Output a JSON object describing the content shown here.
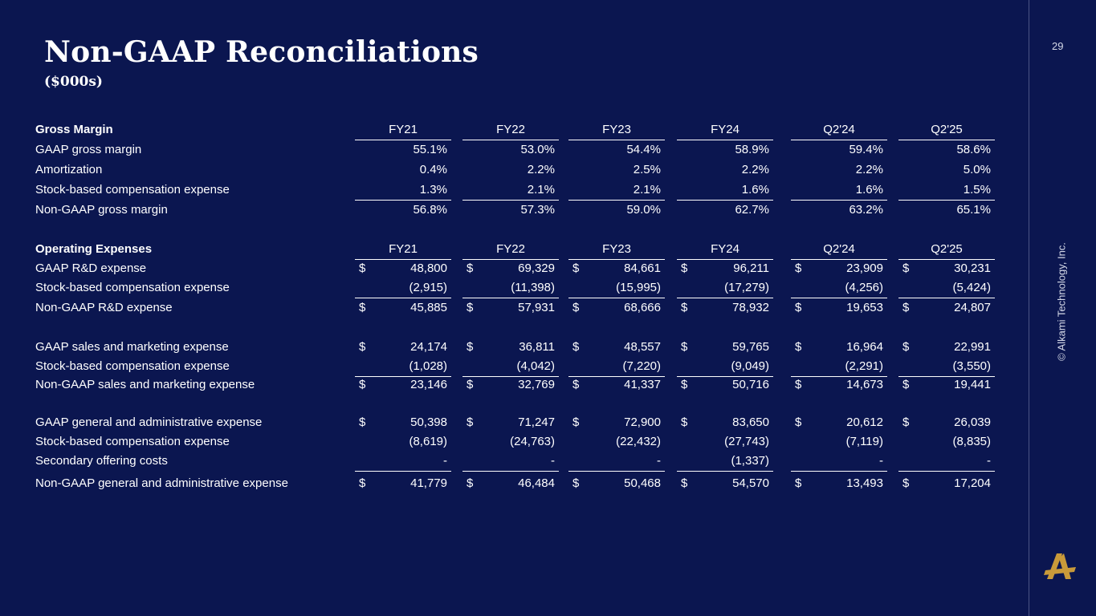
{
  "slide": {
    "title": "Non-GAAP Reconciliations",
    "subtitle": "($000s)",
    "page_number": "29",
    "copyright": "© Alkami Technology, Inc."
  },
  "table": {
    "rows": [
      {
        "label": "Gross Margin",
        "type": "head",
        "cells": [
          "FY21",
          "FY22",
          "FY23",
          "FY24",
          "Q2'24",
          "Q2'25"
        ]
      },
      {
        "label": "GAAP gross margin",
        "cells": [
          "55.1%",
          "53.0%",
          "54.4%",
          "58.9%",
          "59.4%",
          "58.6%"
        ]
      },
      {
        "label": "Amortization",
        "cells": [
          "0.4%",
          "2.2%",
          "2.5%",
          "2.2%",
          "2.2%",
          "5.0%"
        ]
      },
      {
        "label": "Stock-based compensation expense",
        "cells": [
          "1.3%",
          "2.1%",
          "2.1%",
          "1.6%",
          "1.6%",
          "1.5%"
        ]
      },
      {
        "label": "Non-GAAP gross margin",
        "cells": [
          "56.8%",
          "57.3%",
          "59.0%",
          "62.7%",
          "63.2%",
          "65.1%"
        ]
      },
      {
        "label": "Operating Expenses",
        "type": "head",
        "cells": [
          "FY21",
          "FY22",
          "FY23",
          "FY24",
          "Q2'24",
          "Q2'25"
        ]
      },
      {
        "label": "GAAP R&D expense",
        "dollar": true,
        "cells": [
          "48,800",
          "69,329",
          "84,661",
          "96,211",
          "23,909",
          "30,231"
        ]
      },
      {
        "label": "Stock-based compensation expense",
        "cells": [
          "(2,915)",
          "(11,398)",
          "(15,995)",
          "(17,279)",
          "(4,256)",
          "(5,424)"
        ]
      },
      {
        "label": "Non-GAAP R&D expense",
        "dollar": true,
        "cells": [
          "45,885",
          "57,931",
          "68,666",
          "78,932",
          "19,653",
          "24,807"
        ]
      },
      {
        "label": "GAAP sales and marketing expense",
        "dollar": true,
        "cells": [
          "24,174",
          "36,811",
          "48,557",
          "59,765",
          "16,964",
          "22,991"
        ]
      },
      {
        "label": "Stock-based compensation expense",
        "cells": [
          "(1,028)",
          "(4,042)",
          "(7,220)",
          "(9,049)",
          "(2,291)",
          "(3,550)"
        ]
      },
      {
        "label": "Non-GAAP sales and marketing expense",
        "dollar": true,
        "cells": [
          "23,146",
          "32,769",
          "41,337",
          "50,716",
          "14,673",
          "19,441"
        ]
      },
      {
        "label": "GAAP general and administrative expense",
        "dollar": true,
        "cells": [
          "50,398",
          "71,247",
          "72,900",
          "83,650",
          "20,612",
          "26,039"
        ]
      },
      {
        "label": "Stock-based compensation expense",
        "cells": [
          "(8,619)",
          "(24,763)",
          "(22,432)",
          "(27,743)",
          "(7,119)",
          "(8,835)"
        ]
      },
      {
        "label": "Secondary offering costs",
        "cells": [
          "-",
          "-",
          "-",
          "(1,337)",
          "-",
          "-"
        ]
      },
      {
        "label": "Non-GAAP general and administrative expense",
        "dollar": true,
        "cells": [
          "41,779",
          "46,484",
          "50,468",
          "54,570",
          "13,493",
          "17,204"
        ]
      }
    ],
    "dollar_sign": "$"
  }
}
